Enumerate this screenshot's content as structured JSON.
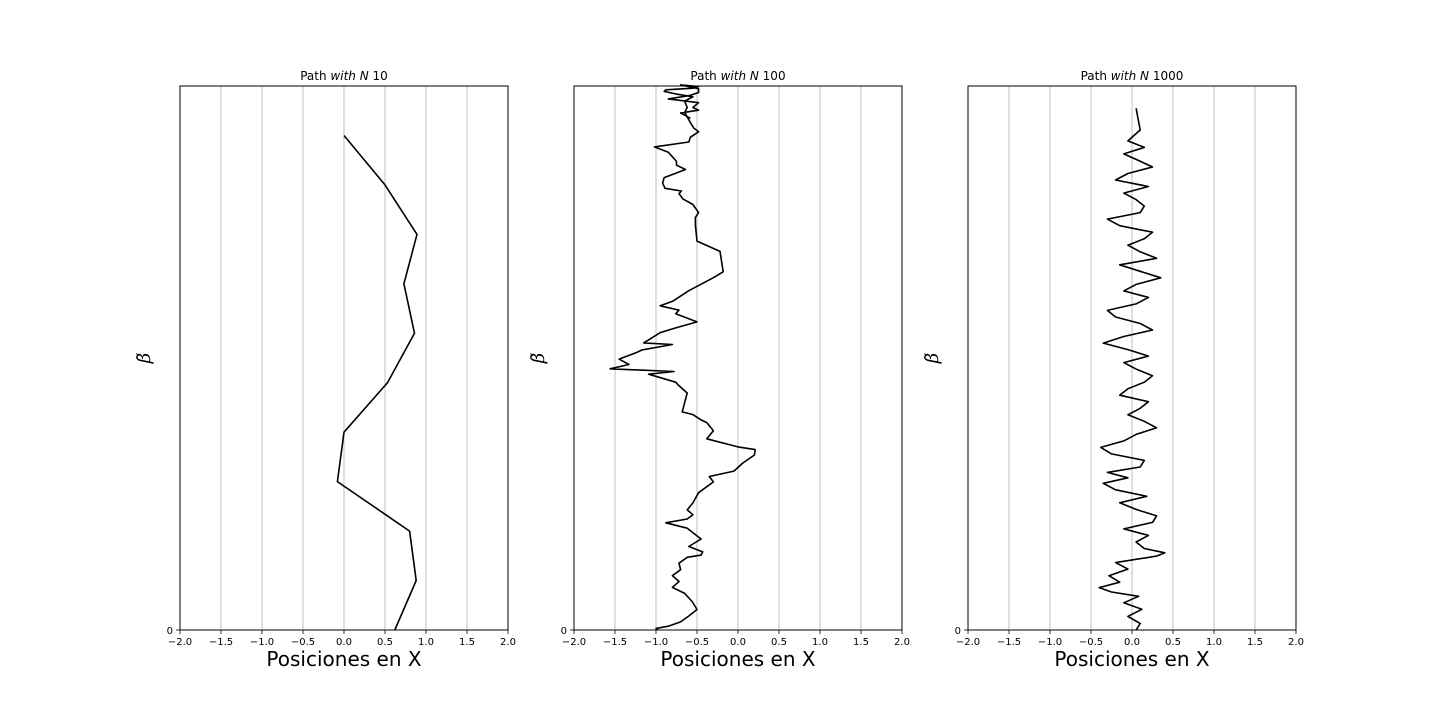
{
  "chart_data": [
    {
      "type": "line",
      "title_prefix": "Path",
      "title_italic": "with N",
      "title_suffix": "10",
      "xlabel": "Posiciones en X",
      "ylabel": "β̃",
      "xlim": [
        -2.0,
        2.0
      ],
      "xticks": [
        "−2.0",
        "−1.5",
        "−1.0",
        "−0.5",
        "0.0",
        "0.5",
        "1.0",
        "1.5",
        "2.0"
      ],
      "yticks": [
        "0"
      ],
      "ylim": [
        0,
        11
      ],
      "grid": "x",
      "series": [
        {
          "x": [
            0.62,
            0.88,
            0.8,
            -0.08,
            0.0,
            0.53,
            0.86,
            0.73,
            0.89,
            0.5,
            0.0
          ],
          "y": [
            0,
            1,
            2,
            3,
            4,
            5,
            6,
            7,
            8,
            9,
            10
          ],
          "color": "#000000"
        }
      ]
    },
    {
      "type": "line",
      "title_prefix": "Path",
      "title_italic": "with N",
      "title_suffix": "100",
      "xlabel": "Posiciones en X",
      "ylabel": "β̃",
      "xlim": [
        -2.0,
        2.0
      ],
      "xticks": [
        "−2.0",
        "−1.5",
        "−1.0",
        "−0.5",
        "0.0",
        "0.5",
        "1.0",
        "1.5",
        "2.0"
      ],
      "yticks": [
        "0"
      ],
      "ylim": [
        0,
        101
      ],
      "grid": "x",
      "series": [
        {
          "x": [
            -0.98,
            -1.0,
            -0.85,
            -0.7,
            -0.6,
            -0.5,
            -0.56,
            -0.65,
            -0.8,
            -0.72,
            -0.8,
            -0.7,
            -0.72,
            -0.62,
            -0.45,
            -0.43,
            -0.6,
            -0.45,
            -0.62,
            -0.88,
            -0.62,
            -0.55,
            -0.62,
            -0.55,
            -0.48,
            -0.3,
            -0.35,
            -0.05,
            0.06,
            0.2,
            0.21,
            0.0,
            -0.38,
            -0.3,
            -0.38,
            -0.45,
            -0.55,
            -0.68,
            -0.62,
            -0.73,
            -0.76,
            -1.09,
            -0.78,
            -1.56,
            -1.33,
            -1.45,
            -1.24,
            -1.17,
            -0.8,
            -1.15,
            -0.95,
            -0.78,
            -0.5,
            -0.76,
            -0.72,
            -0.95,
            -0.8,
            -0.6,
            -0.3,
            -0.18,
            -0.22,
            -0.5,
            -0.52,
            -0.52,
            -0.48,
            -0.55,
            -0.67,
            -0.72,
            -0.69,
            -0.89,
            -0.92,
            -0.9,
            -0.64,
            -0.75,
            -0.75,
            -0.85,
            -1.02,
            -0.6,
            -0.58,
            -0.48,
            -0.54,
            -0.58,
            -0.65,
            -0.62,
            -0.65,
            -0.55,
            -0.75,
            -0.9,
            -0.88,
            -0.55,
            -0.48,
            -0.7,
            -0.48,
            -0.48,
            -0.6,
            -0.85,
            -0.48,
            -0.55,
            -0.48,
            -0.7,
            -0.58
          ],
          "y": [
            0,
            0.3,
            0.7,
            1.5,
            2.6,
            3.8,
            5.3,
            6.8,
            7.9,
            9.0,
            10.1,
            11.2,
            12.4,
            13.5,
            13.9,
            14.5,
            15.5,
            16.9,
            18.9,
            19.9,
            20.6,
            21.4,
            22.3,
            23.6,
            25.5,
            27.5,
            28.5,
            29.5,
            31.0,
            32.5,
            33.5,
            34.0,
            35.5,
            37.0,
            38.5,
            39.0,
            40.0,
            40.5,
            44.0,
            45.5,
            46.0,
            47.5,
            48.0,
            48.5,
            49.3,
            50.3,
            51.5,
            52.0,
            53.0,
            53.3,
            55.2,
            56.0,
            57.2,
            58.7,
            59.4,
            60.2,
            61.0,
            63.0,
            65.4,
            66.5,
            70.3,
            72.2,
            75.2,
            76.6,
            77.5,
            79.0,
            80.0,
            81.0,
            81.5,
            82.0,
            83.0,
            84.0,
            85.5,
            86.3,
            87.0,
            88.7,
            89.7,
            90.6,
            91.5,
            92.5,
            93.2,
            94.2,
            96.1,
            97.0,
            98.2,
            99.0,
            99.5,
            100.0,
            100.3,
            100.6,
            100.9,
            101.2,
            100.5,
            99.8,
            99.2,
            98.6,
            97.9,
            97.0,
            96.5,
            96.0,
            95.0
          ],
          "color": "#000000"
        }
      ]
    },
    {
      "type": "line",
      "title_prefix": "Path",
      "title_italic": "with N",
      "title_suffix": "1000",
      "xlabel": "Posiciones en X",
      "ylabel": "β̃",
      "xlim": [
        -2.0,
        2.0
      ],
      "xticks": [
        "−2.0",
        "−1.5",
        "−1.0",
        "−0.5",
        "0.0",
        "0.5",
        "1.0",
        "1.5",
        "2.0"
      ],
      "yticks": [
        "0"
      ],
      "ylim": [
        0,
        1001
      ],
      "grid": "x",
      "series": [
        {
          "x": [
            0.05,
            0.1,
            -0.05,
            0.12,
            -0.1,
            0.08,
            -0.25,
            -0.4,
            -0.15,
            -0.28,
            -0.05,
            -0.2,
            0.3,
            0.4,
            0.15,
            0.05,
            0.2,
            -0.1,
            0.25,
            0.3,
            0.05,
            -0.15,
            0.18,
            -0.2,
            -0.35,
            -0.05,
            -0.3,
            0.1,
            0.15,
            -0.25,
            -0.38,
            -0.1,
            0.05,
            0.3,
            0.15,
            -0.05,
            0.1,
            0.2,
            -0.15,
            -0.05,
            0.15,
            0.25,
            0.05,
            -0.1,
            0.2,
            -0.05,
            -0.35,
            -0.1,
            0.25,
            0.1,
            -0.2,
            -0.3,
            0.05,
            0.2,
            -0.1,
            0.05,
            0.35,
            0.1,
            -0.15,
            0.3,
            0.1,
            -0.05,
            0.15,
            0.25,
            -0.15,
            -0.3,
            0.1,
            0.15,
            0.05,
            -0.1,
            0.2,
            -0.2,
            -0.05,
            0.25,
            0.08,
            -0.1,
            0.15,
            -0.05,
            0.1,
            0.05
          ],
          "y": [
            0,
            12,
            25,
            38,
            50,
            62,
            70,
            78,
            88,
            100,
            112,
            124,
            136,
            142,
            150,
            162,
            174,
            186,
            198,
            210,
            222,
            234,
            246,
            258,
            270,
            280,
            290,
            300,
            312,
            324,
            336,
            348,
            360,
            372,
            384,
            396,
            408,
            420,
            432,
            444,
            456,
            468,
            480,
            492,
            504,
            516,
            528,
            540,
            552,
            564,
            576,
            588,
            600,
            612,
            624,
            636,
            648,
            660,
            672,
            684,
            696,
            708,
            720,
            732,
            744,
            756,
            768,
            780,
            792,
            804,
            816,
            828,
            840,
            852,
            864,
            876,
            888,
            900,
            920,
            960
          ],
          "color": "#000000"
        }
      ]
    }
  ]
}
